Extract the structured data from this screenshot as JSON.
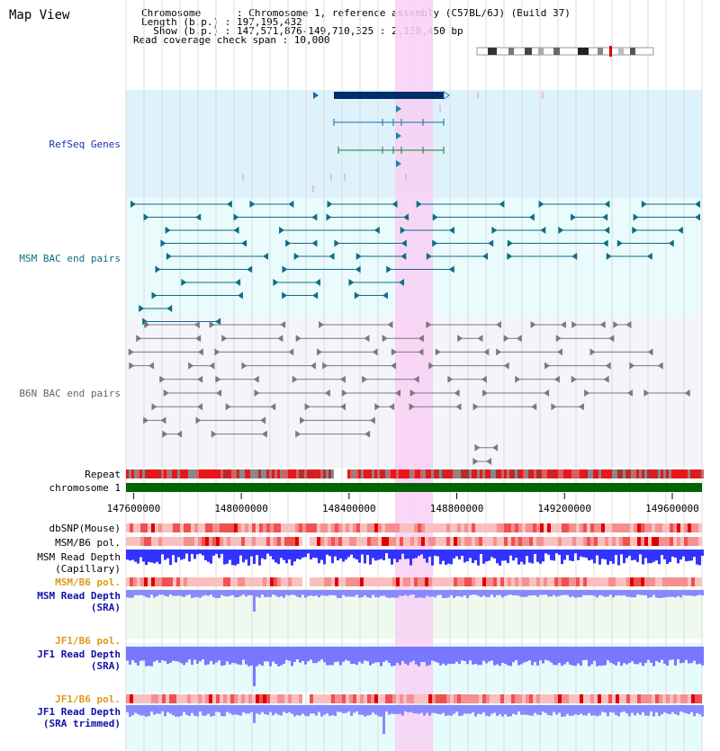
{
  "app_title": "Map View",
  "info": {
    "chromosome": "Chromosome      : Chromosome 1, reference assembly (C57BL/6J) (Build 37)",
    "length": "Length (b.p.) : 197,195,432",
    "show": "  Show (b.p.) : 147,571,876-149,710,325 : 2,138,450 bp",
    "read_coverage": "Read coverage check span : 10,000"
  },
  "tracks": {
    "refseq": "RefSeq Genes",
    "msm_bac": "MSM BAC end pairs",
    "b6n_bac": "B6N BAC end pairs",
    "repeat": "Repeat",
    "chromosome": "chromosome 1",
    "dbsnp": "dbSNP(Mouse)",
    "msm_b6_pol": "MSM/B6 pol.",
    "msm_depth_cap_1": "MSM Read Depth",
    "msm_depth_cap_2": "(Capillary)",
    "msm_b6_pol_2": "MSM/B6 pol.",
    "msm_depth_sra_1": "MSM Read Depth",
    "msm_depth_sra_2": "(SRA)",
    "jf1_b6_pol": "JF1/B6 pol.",
    "jf1_depth_sra_1": "JF1 Read Depth",
    "jf1_depth_sra_2": "(SRA)",
    "jf1_b6_pol_2": "JF1/B6 pol.",
    "jf1_depth_trim_1": "JF1 Read Depth",
    "jf1_depth_trim_2": "(SRA trimmed)"
  },
  "axis": {
    "ticks": [
      "147600000",
      "148000000",
      "148400000",
      "148800000",
      "149200000",
      "149600000"
    ],
    "tick_values": [
      147600000,
      148000000,
      148400000,
      148800000,
      149200000,
      149600000
    ],
    "range": [
      147571876,
      149710325
    ]
  },
  "colors": {
    "refseq_bg": "#ddf2fb",
    "msm_bg": "#e9fbfc",
    "b6n_bg": "#f3f3fb",
    "highlight": "#f9d0f5",
    "gene": "#002e6b",
    "msm_feature": "#0d6e86",
    "b6n_feature": "#7a7a7a",
    "chromosome_bar": "#006400",
    "depth": "#3333ff",
    "msm_label": "#0a6f84",
    "refseq_label": "#1a2fb0",
    "pol_label": "#dd9a18",
    "depth_label": "#1111aa"
  }
}
